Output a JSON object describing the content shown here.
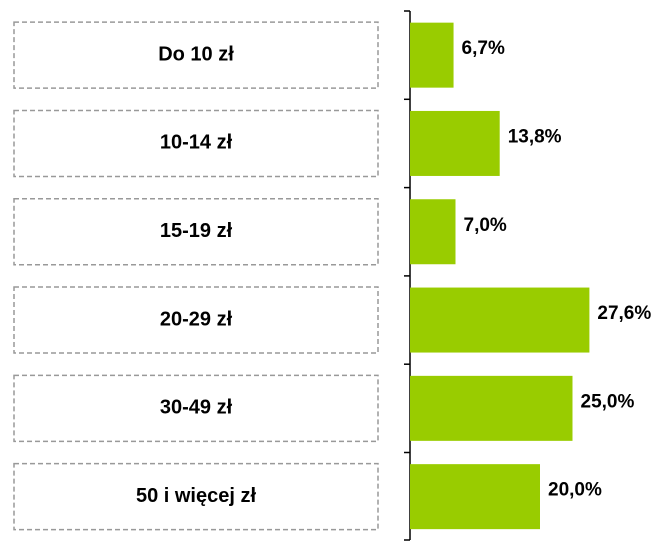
{
  "chart_data": {
    "type": "bar",
    "orientation": "horizontal",
    "categories": [
      "Do 10 zł",
      "10-14 zł",
      "15-19 zł",
      "20-29 zł",
      "30-49 zł",
      "50 i więcej zł"
    ],
    "values": [
      6.7,
      13.8,
      7.0,
      27.6,
      25.0,
      20.0
    ],
    "value_labels": [
      "6,7%",
      "13,8%",
      "7,0%",
      "27,6%",
      "25,0%",
      "20,0%"
    ],
    "color": "#99cc00",
    "xlim": [
      0,
      40
    ]
  }
}
